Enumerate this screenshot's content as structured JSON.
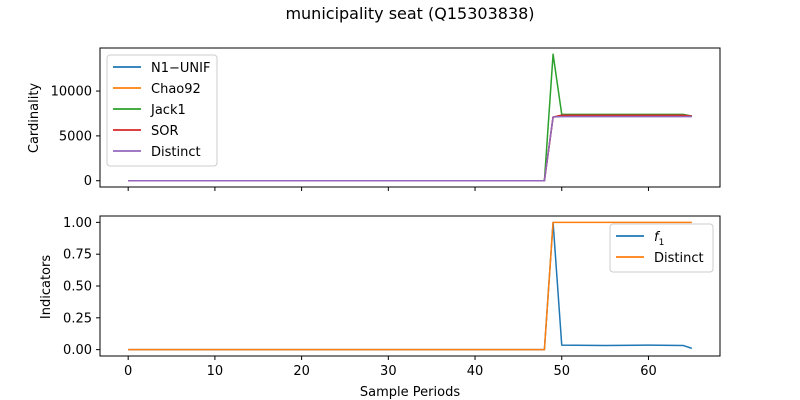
{
  "chart_data": {
    "title": "municipality seat (Q15303838)",
    "xlabel": "Sample Periods",
    "xlim": [
      -3.25,
      68.25
    ],
    "xticks": [
      0,
      10,
      20,
      30,
      40,
      50,
      60
    ],
    "panels": [
      {
        "id": "top",
        "type": "line",
        "ylabel": "Cardinality",
        "ylim": [
          -700,
          14800
        ],
        "yticks": [
          0,
          5000,
          10000
        ],
        "legend": "upper-left",
        "series": [
          {
            "name": "N1−UNIF",
            "color": "#1f77b4",
            "x": [
              0,
              10,
              20,
              30,
              40,
              48,
              49,
              50,
              55,
              60,
              64,
              65
            ],
            "y": [
              0,
              0,
              0,
              0,
              0,
              0,
              7100,
              7300,
              7300,
              7300,
              7300,
              7200
            ]
          },
          {
            "name": "Chao92",
            "color": "#ff7f0e",
            "x": [
              0,
              10,
              20,
              30,
              40,
              48,
              49,
              50,
              55,
              60,
              64,
              65
            ],
            "y": [
              0,
              0,
              0,
              0,
              0,
              0,
              7100,
              7300,
              7300,
              7300,
              7300,
              7200
            ]
          },
          {
            "name": "Jack1",
            "color": "#2ca02c",
            "x": [
              0,
              10,
              20,
              30,
              40,
              48,
              49,
              50,
              55,
              60,
              64,
              65
            ],
            "y": [
              0,
              0,
              0,
              0,
              0,
              0,
              14100,
              7400,
              7400,
              7400,
              7400,
              7200
            ]
          },
          {
            "name": "SOR",
            "color": "#d62728",
            "x": [
              0,
              10,
              20,
              30,
              40,
              48,
              49,
              50,
              55,
              60,
              64,
              65
            ],
            "y": [
              0,
              0,
              0,
              0,
              0,
              0,
              7100,
              7300,
              7300,
              7300,
              7300,
              7200
            ]
          },
          {
            "name": "Distinct",
            "color": "#9467bd",
            "x": [
              0,
              10,
              20,
              30,
              40,
              48,
              49,
              50,
              55,
              60,
              64,
              65
            ],
            "y": [
              0,
              0,
              0,
              0,
              0,
              0,
              7100,
              7150,
              7150,
              7150,
              7150,
              7150
            ]
          }
        ]
      },
      {
        "id": "bottom",
        "type": "line",
        "ylabel": "Indicators",
        "ylim": [
          -0.05,
          1.05
        ],
        "yticks": [
          "0.00",
          "0.25",
          "0.50",
          "0.75",
          "1.00"
        ],
        "legend": "upper-right",
        "series": [
          {
            "name": "f",
            "name_sub": "1",
            "color": "#1f77b4",
            "x": [
              0,
              10,
              20,
              30,
              40,
              48,
              49,
              50,
              55,
              60,
              64,
              65
            ],
            "y": [
              0,
              0,
              0,
              0,
              0,
              0,
              1.0,
              0.035,
              0.033,
              0.035,
              0.033,
              0.01
            ]
          },
          {
            "name": "Distinct",
            "color": "#ff7f0e",
            "x": [
              0,
              10,
              20,
              30,
              40,
              48,
              49,
              50,
              55,
              60,
              64,
              65
            ],
            "y": [
              0,
              0,
              0,
              0,
              0,
              0,
              1.0,
              1.0,
              1.0,
              1.0,
              1.0,
              1.0
            ]
          }
        ]
      }
    ]
  }
}
